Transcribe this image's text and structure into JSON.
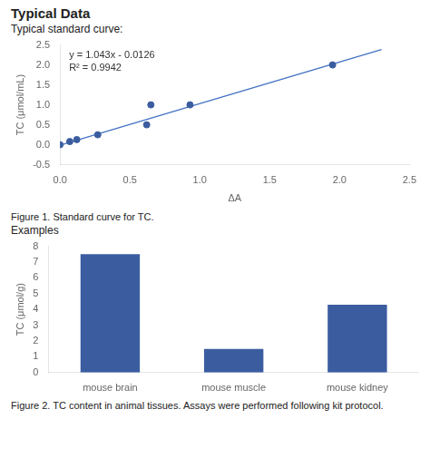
{
  "chart_data": [
    {
      "type": "scatter",
      "title": "Typical Data",
      "subtitle": "Typical standard curve:",
      "caption": "Figure 1. Standard curve for TC.",
      "x_label": "ΔA",
      "y_label": "TC (μmol/mL)",
      "series": [
        {
          "type": "scatter",
          "x": [
            0.0,
            0.07,
            0.12,
            0.27,
            0.62,
            0.65,
            0.93,
            1.95
          ],
          "values": [
            0.0,
            0.08,
            0.13,
            0.25,
            0.5,
            1.0,
            1.0,
            2.0
          ],
          "color": "#3B5DA0"
        },
        {
          "type": "line",
          "x": [
            0.0,
            2.3
          ],
          "values": [
            -0.0126,
            2.3863
          ],
          "color": "#4472C4"
        }
      ],
      "annotations": [
        "y = 1.043x - 0.0126",
        "R² = 0.9942"
      ],
      "xlim": [
        0.0,
        2.5
      ],
      "ylim": [
        -0.5,
        2.5
      ],
      "xticks": [
        {
          "value": 0.0,
          "label": "0.0"
        },
        {
          "value": 0.5,
          "label": "0.5"
        },
        {
          "value": 1.0,
          "label": "1.0"
        },
        {
          "value": 1.5,
          "label": "1.5"
        },
        {
          "value": 2.0,
          "label": "2.0"
        },
        {
          "value": 2.5,
          "label": "2.5"
        }
      ],
      "yticks": [
        {
          "value": -0.5,
          "label": "-0.5"
        },
        {
          "value": 0.0,
          "label": "0.0"
        },
        {
          "value": 0.5,
          "label": "0.5"
        },
        {
          "value": 1.0,
          "label": "1.0"
        },
        {
          "value": 1.5,
          "label": "1.5"
        },
        {
          "value": 2.0,
          "label": "2.0"
        },
        {
          "value": 2.5,
          "label": "2.5"
        }
      ],
      "grid": false
    },
    {
      "type": "bar",
      "subtitle": "Examples",
      "caption": "Figure 2. TC content in animal tissues. Assays were performed following kit protocol.",
      "categories": [
        "mouse brain",
        "mouse muscle",
        "mouse kidney"
      ],
      "values": [
        7.5,
        1.5,
        4.3
      ],
      "color": "#3B5DA0",
      "y_label": "TC (μmol/g)",
      "ylim": [
        0,
        8
      ],
      "yticks": [
        0,
        1,
        2,
        3,
        4,
        5,
        6,
        7,
        8
      ],
      "grid": false
    }
  ]
}
